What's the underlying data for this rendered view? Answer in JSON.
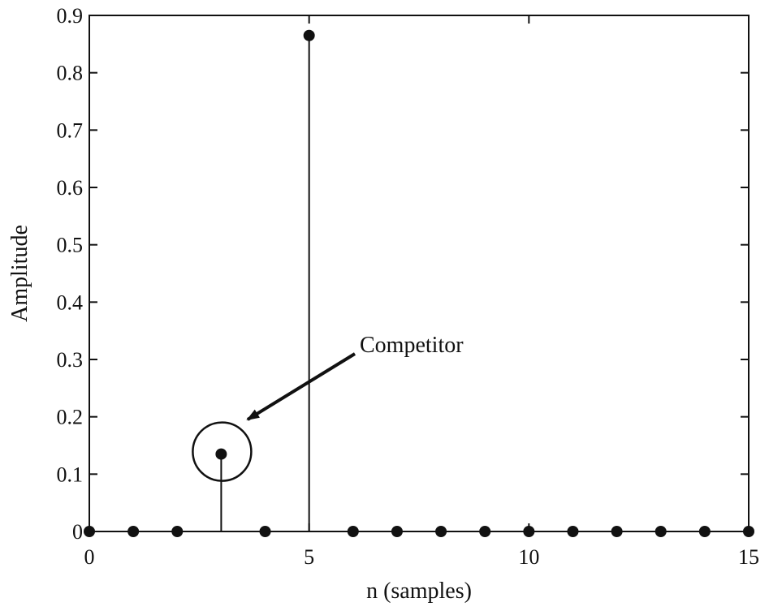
{
  "chart_data": {
    "type": "stem",
    "title": "",
    "xlabel": "n (samples)",
    "ylabel": "Amplitude",
    "xlim": [
      0,
      15
    ],
    "ylim": [
      0,
      0.9
    ],
    "xticks": [
      0,
      5,
      10,
      15
    ],
    "yticks": [
      0,
      0.1,
      0.2,
      0.3,
      0.4,
      0.5,
      0.6,
      0.7,
      0.8,
      0.9
    ],
    "grid": false,
    "legend": "none",
    "series": [
      {
        "x": [
          0,
          1,
          2,
          3,
          4,
          5,
          6,
          7,
          8,
          9,
          10,
          11,
          12,
          13,
          14,
          15
        ],
        "y": [
          0,
          0,
          0,
          0.135,
          0,
          0.865,
          0,
          0,
          0,
          0,
          0,
          0,
          0,
          0,
          0,
          0
        ],
        "color": "#111111"
      }
    ],
    "annotations": [
      {
        "text": "Competitor",
        "target_x": 3,
        "target_y": 0.135
      }
    ]
  }
}
